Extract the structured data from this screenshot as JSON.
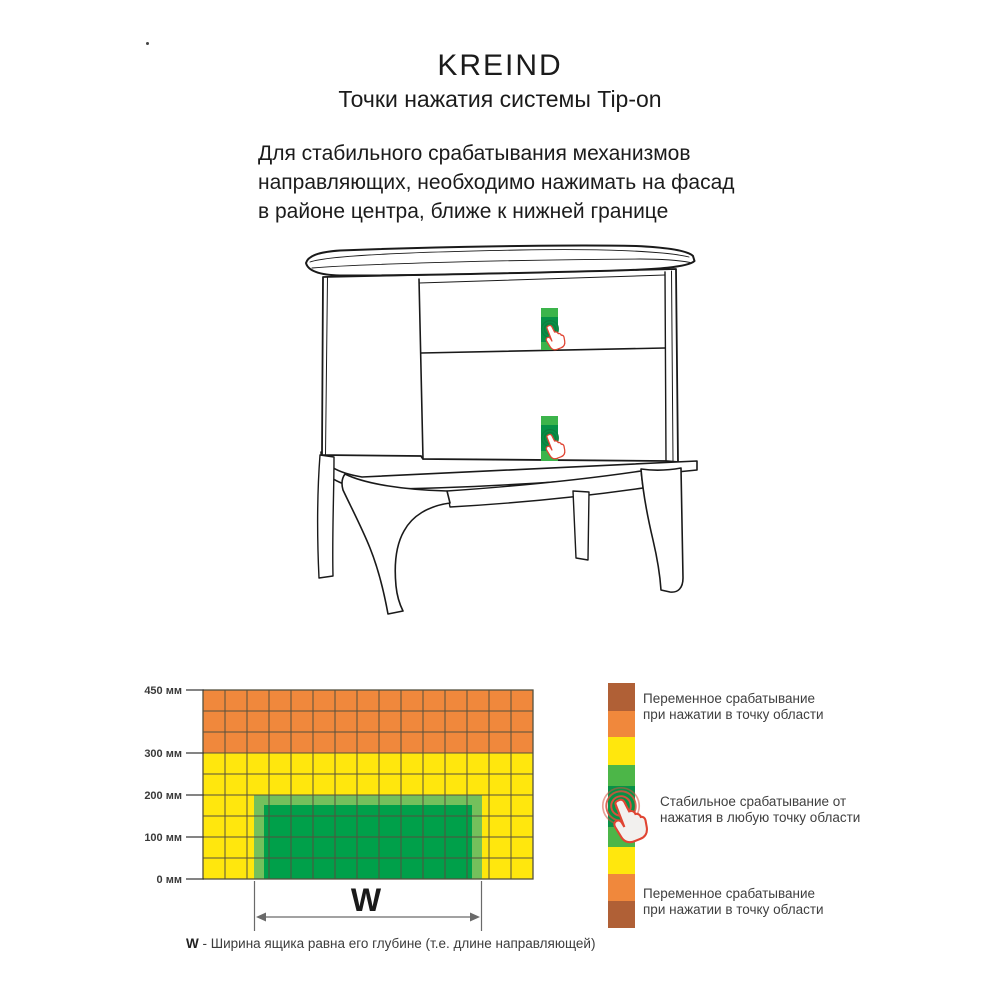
{
  "header": {
    "brand": "KREIND",
    "subtitle": "Точки нажатия системы Tip-on",
    "intro_lines": [
      "Для стабильного срабатывания механизмов",
      "направляющих, необходимо нажимать на фасад",
      "в районе центра, ближе к нижней границе"
    ]
  },
  "chart": {
    "y_ticks": [
      "450 мм",
      "300 мм",
      "200 мм",
      "100 мм",
      "0 мм"
    ],
    "width_label": "W",
    "caption_bold": "W",
    "caption_rest": " - Ширина ящика равна его глубине (т.е. длине направляющей)",
    "zones_mm": {
      "total_height": 450,
      "row_step": 50,
      "orange_range": [
        300,
        450
      ],
      "yellow_range": [
        0,
        300
      ],
      "green_range": [
        0,
        200
      ]
    }
  },
  "legend": {
    "top": [
      "Переменное срабатывание",
      "при нажатии в точку области"
    ],
    "middle": [
      "Стабильное срабатывание от",
      "нажатия в любую точку области"
    ],
    "bottom": [
      "Переменное срабатывание",
      "при нажатии в точку области"
    ]
  },
  "colors": {
    "orange": "#F0883C",
    "yellow": "#FFE70D",
    "green_dark": "#00A04A",
    "green_light": "#74C05C",
    "legend_green": "#4CB648",
    "brown": "#B06036",
    "grid_line": "#55503E",
    "outline": "#1A1A1A",
    "hand_red": "#E04432",
    "ring_green": "#0E7C3E",
    "ring_red": "#D5513E",
    "touch_green": "#3CB44B",
    "touch_dark": "#079147",
    "dim_line": "#6A6A6A",
    "tick_text": "#3A3A3A"
  }
}
